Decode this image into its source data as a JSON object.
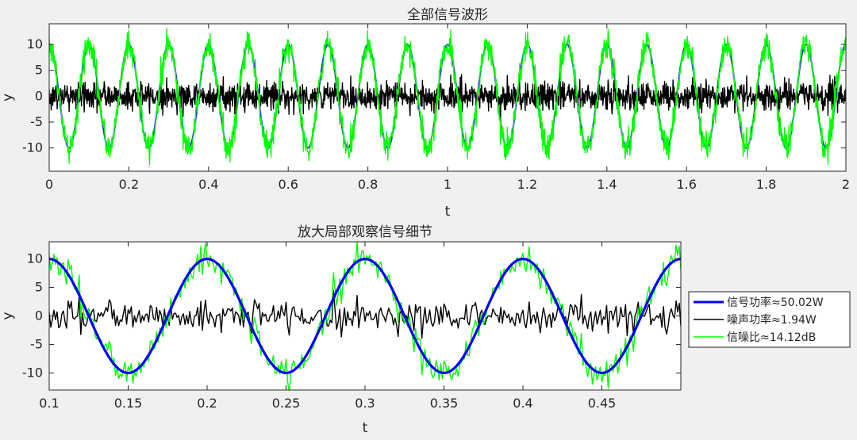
{
  "chart_data": [
    {
      "type": "line",
      "title": "全部信号波形",
      "xlabel": "t",
      "ylabel": "y",
      "xlim": [
        0,
        2
      ],
      "ylim": [
        -14.5,
        14
      ],
      "xticks": [
        "0",
        "0.2",
        "0.4",
        "0.6",
        "0.8",
        "1",
        "1.2",
        "1.4",
        "1.6",
        "1.8",
        "2"
      ],
      "yticks": [
        "10",
        "5",
        "0",
        "-5",
        "-10"
      ],
      "grid": false,
      "signal": {
        "frequency_hz": 10,
        "amplitude": 10,
        "phase": "cosine"
      },
      "series": [
        {
          "role": "clean",
          "color": "#1f3fbf"
        },
        {
          "role": "noise",
          "color": "#000000",
          "std": 1.39
        },
        {
          "role": "noisy",
          "color": "#00ff00"
        }
      ]
    },
    {
      "type": "line",
      "title": "放大局部观察信号细节",
      "xlabel": "t",
      "ylabel": "y",
      "xlim": [
        0.1,
        0.5
      ],
      "ylim": [
        -13,
        13
      ],
      "xticks": [
        "0.1",
        "0.15",
        "0.2",
        "0.25",
        "0.3",
        "0.35",
        "0.4",
        "0.45"
      ],
      "yticks": [
        "10",
        "5",
        "0",
        "-5",
        "-10"
      ],
      "grid": false,
      "signal": {
        "frequency_hz": 10,
        "amplitude": 10,
        "phase": "cosine"
      },
      "series": [
        {
          "name": "信号功率≈50.02W",
          "role": "clean",
          "color": "#0000ff"
        },
        {
          "name": "噪声功率≈1.94W",
          "role": "noise",
          "color": "#000000",
          "std": 1.39
        },
        {
          "name": "信噪比≈14.12dB",
          "role": "noisy",
          "color": "#00ff00"
        }
      ],
      "legend_position": "right"
    }
  ]
}
